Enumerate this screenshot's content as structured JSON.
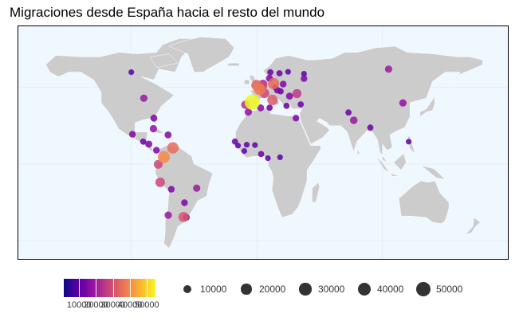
{
  "title": "Migraciones desde España hacia el resto del mundo",
  "map": {
    "ocean_color": "#f0f8ff",
    "land_color": "#cccccc",
    "border_color": "#ffffff",
    "points": [
      {
        "lon": -3.7,
        "lat": 40.4,
        "n": 55000,
        "color": "#f0f921"
      },
      {
        "lon": 2.3,
        "lat": 48.9,
        "n": 28000,
        "color": "#ed7953"
      },
      {
        "lon": -0.1,
        "lat": 51.5,
        "n": 22000,
        "color": "#e16462"
      },
      {
        "lon": 13.4,
        "lat": 52.5,
        "n": 25000,
        "color": "#e66c5c"
      },
      {
        "lon": 12.5,
        "lat": 41.9,
        "n": 20000,
        "color": "#db5c68"
      },
      {
        "lon": 4.4,
        "lat": 50.8,
        "n": 14000,
        "color": "#cc4778"
      },
      {
        "lon": 6.1,
        "lat": 46.2,
        "n": 15000,
        "color": "#cc4778"
      },
      {
        "lon": -9.1,
        "lat": 38.7,
        "n": 10000,
        "color": "#b52f8c"
      },
      {
        "lon": 4.9,
        "lat": 52.4,
        "n": 9000,
        "color": "#a72197"
      },
      {
        "lon": 10.0,
        "lat": 56.0,
        "n": 5000,
        "color": "#8405a7"
      },
      {
        "lon": 18.1,
        "lat": 59.3,
        "n": 3000,
        "color": "#6a00a8"
      },
      {
        "lon": 10.8,
        "lat": 59.9,
        "n": 3000,
        "color": "#6a00a8"
      },
      {
        "lon": 16.4,
        "lat": 48.2,
        "n": 4000,
        "color": "#7e03a8"
      },
      {
        "lon": 19.0,
        "lat": 47.5,
        "n": 3000,
        "color": "#6a00a8"
      },
      {
        "lon": 21.0,
        "lat": 52.2,
        "n": 4000,
        "color": "#7e03a8"
      },
      {
        "lon": 24.9,
        "lat": 60.2,
        "n": 2000,
        "color": "#5c01a6"
      },
      {
        "lon": 26.1,
        "lat": 44.4,
        "n": 5000,
        "color": "#8405a7"
      },
      {
        "lon": 23.7,
        "lat": 38.0,
        "n": 3000,
        "color": "#6a00a8"
      },
      {
        "lon": 32.0,
        "lat": 46.0,
        "n": 12000,
        "color": "#bd3786"
      },
      {
        "lon": 35.0,
        "lat": 39.0,
        "n": 3000,
        "color": "#6a00a8"
      },
      {
        "lon": 14.5,
        "lat": 50.1,
        "n": 2000,
        "color": "#5c01a6"
      },
      {
        "lon": 37.6,
        "lat": 55.8,
        "n": 4000,
        "color": "#7e03a8"
      },
      {
        "lon": 37.6,
        "lat": 59.0,
        "n": 2000,
        "color": "#5c01a6"
      },
      {
        "lon": -6.8,
        "lat": 34.0,
        "n": 6000,
        "color": "#8f0da4"
      },
      {
        "lon": 3.0,
        "lat": 36.7,
        "n": 5000,
        "color": "#8405a7"
      },
      {
        "lon": 10.2,
        "lat": 36.8,
        "n": 3000,
        "color": "#6a00a8"
      },
      {
        "lon": 31.2,
        "lat": 30.0,
        "n": 4000,
        "color": "#7e03a8"
      },
      {
        "lon": -17.4,
        "lat": 14.7,
        "n": 3000,
        "color": "#6a00a8"
      },
      {
        "lon": -15.0,
        "lat": 12.0,
        "n": 2000,
        "color": "#5c01a6"
      },
      {
        "lon": -8.0,
        "lat": 12.6,
        "n": 2000,
        "color": "#5c01a6"
      },
      {
        "lon": -1.5,
        "lat": 12.4,
        "n": 2000,
        "color": "#5c01a6"
      },
      {
        "lon": 3.4,
        "lat": 6.5,
        "n": 3000,
        "color": "#6a00a8"
      },
      {
        "lon": 8.8,
        "lat": 3.8,
        "n": 2000,
        "color": "#5c01a6"
      },
      {
        "lon": -10.0,
        "lat": 8.5,
        "n": 2000,
        "color": "#5c01a6"
      },
      {
        "lon": 18.5,
        "lat": 4.4,
        "n": 2000,
        "color": "#5c01a6"
      },
      {
        "lon": 77.2,
        "lat": 28.6,
        "n": 7000,
        "color": "#9a179b"
      },
      {
        "lon": 73.0,
        "lat": 33.7,
        "n": 3000,
        "color": "#6a00a8"
      },
      {
        "lon": 90.4,
        "lat": 23.8,
        "n": 3000,
        "color": "#6a00a8"
      },
      {
        "lon": 116.4,
        "lat": 39.9,
        "n": 6000,
        "color": "#8f0da4"
      },
      {
        "lon": 105.0,
        "lat": 62.0,
        "n": 6000,
        "color": "#9a179b"
      },
      {
        "lon": 121.0,
        "lat": 14.6,
        "n": 2000,
        "color": "#5c01a6"
      },
      {
        "lon": -100.0,
        "lat": 60.0,
        "n": 2000,
        "color": "#5c01a6"
      },
      {
        "lon": -90.0,
        "lat": 43.0,
        "n": 6000,
        "color": "#9a179b"
      },
      {
        "lon": -82.0,
        "lat": 30.0,
        "n": 5000,
        "color": "#8405a7"
      },
      {
        "lon": -99.1,
        "lat": 19.4,
        "n": 4000,
        "color": "#7e03a8"
      },
      {
        "lon": -90.5,
        "lat": 14.6,
        "n": 3000,
        "color": "#6a00a8"
      },
      {
        "lon": -86.0,
        "lat": 13.0,
        "n": 5000,
        "color": "#8405a7"
      },
      {
        "lon": -80.0,
        "lat": 9.0,
        "n": 4000,
        "color": "#7e03a8"
      },
      {
        "lon": -82.4,
        "lat": 23.1,
        "n": 6000,
        "color": "#8f0da4"
      },
      {
        "lon": -70.7,
        "lat": 19.0,
        "n": 5000,
        "color": "#8405a7"
      },
      {
        "lon": -66.9,
        "lat": 10.5,
        "n": 26000,
        "color": "#e66c5c"
      },
      {
        "lon": -74.1,
        "lat": 4.6,
        "n": 30000,
        "color": "#f48849"
      },
      {
        "lon": -78.5,
        "lat": -0.2,
        "n": 12000,
        "color": "#cc4778"
      },
      {
        "lon": -77.0,
        "lat": -12.0,
        "n": 15000,
        "color": "#cc4778"
      },
      {
        "lon": -68.1,
        "lat": -16.5,
        "n": 4000,
        "color": "#7e03a8"
      },
      {
        "lon": -47.9,
        "lat": -15.8,
        "n": 6000,
        "color": "#9a179b"
      },
      {
        "lon": -57.6,
        "lat": -25.3,
        "n": 4000,
        "color": "#7e03a8"
      },
      {
        "lon": -70.6,
        "lat": -33.4,
        "n": 6000,
        "color": "#9a179b"
      },
      {
        "lon": -58.4,
        "lat": -34.6,
        "n": 18000,
        "color": "#d8576b"
      },
      {
        "lon": -56.2,
        "lat": -34.9,
        "n": 5000,
        "color": "#8405a7"
      }
    ]
  },
  "legend_color": {
    "ticks": [
      10000,
      20000,
      30000,
      40000,
      50000
    ],
    "labels": [
      "10000",
      "20000",
      "30000",
      "40000",
      "50000"
    ],
    "min": 1000,
    "max": 55000
  },
  "legend_size": {
    "items": [
      {
        "value": 10000,
        "label": "10000"
      },
      {
        "value": 20000,
        "label": "20000"
      },
      {
        "value": 30000,
        "label": "30000"
      },
      {
        "value": 40000,
        "label": "40000"
      },
      {
        "value": 50000,
        "label": "50000"
      }
    ]
  }
}
